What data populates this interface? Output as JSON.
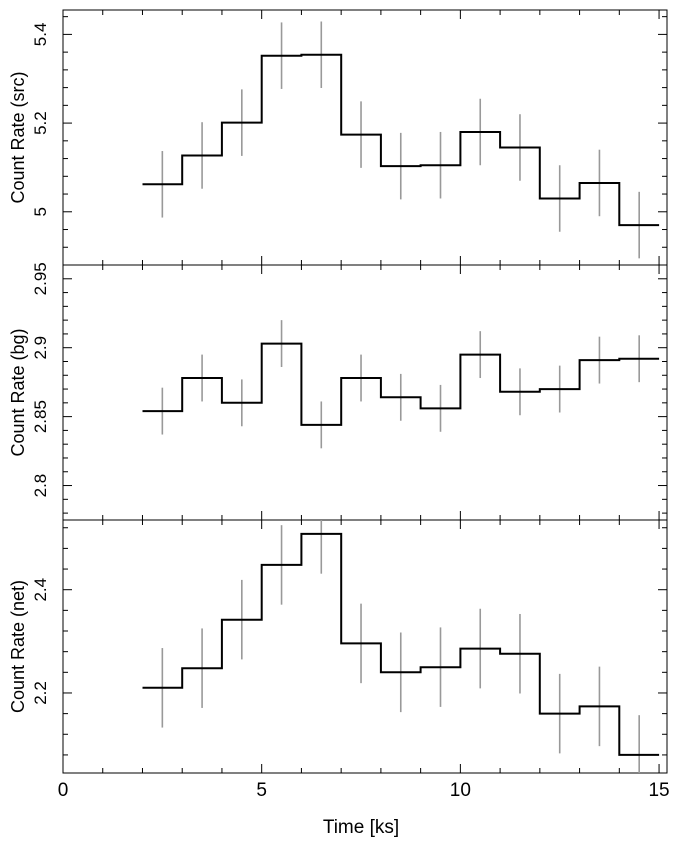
{
  "chart_data": {
    "type": "line",
    "xlabel": "Time [ks]",
    "xlim": [
      0,
      15.2
    ],
    "xticks_major": [
      "0",
      "5",
      "10",
      "15"
    ],
    "x": [
      2.5,
      3.5,
      4.5,
      5.5,
      6.5,
      7.5,
      8.5,
      9.5,
      10.5,
      11.5,
      12.5,
      13.5,
      14.5
    ],
    "bin_width": 1,
    "step_color": "#000000",
    "error_color": "#999999",
    "panels": [
      {
        "ylabel": "Count Rate (src)",
        "ylim": [
          4.88,
          5.455
        ],
        "yticks": [
          "5",
          "5.2",
          "5.4"
        ],
        "values": [
          5.062,
          5.127,
          5.201,
          5.352,
          5.354,
          5.174,
          5.103,
          5.105,
          5.18,
          5.145,
          5.03,
          5.065,
          4.97
        ],
        "error": 0.075
      },
      {
        "ylabel": "Count Rate (bg)",
        "ylim": [
          2.775,
          2.96
        ],
        "yticks": [
          "2.8",
          "2.85",
          "2.9",
          "2.95"
        ],
        "values": [
          2.854,
          2.878,
          2.86,
          2.903,
          2.844,
          2.878,
          2.864,
          2.856,
          2.895,
          2.868,
          2.87,
          2.891,
          2.892
        ],
        "error": 0.017
      },
      {
        "ylabel": "Count Rate (net)",
        "ylim": [
          2.045,
          2.535
        ],
        "yticks": [
          "2.2",
          "2.4"
        ],
        "values": [
          2.21,
          2.248,
          2.342,
          2.448,
          2.508,
          2.296,
          2.24,
          2.25,
          2.286,
          2.276,
          2.16,
          2.174,
          2.08
        ],
        "error": 0.077
      }
    ]
  }
}
